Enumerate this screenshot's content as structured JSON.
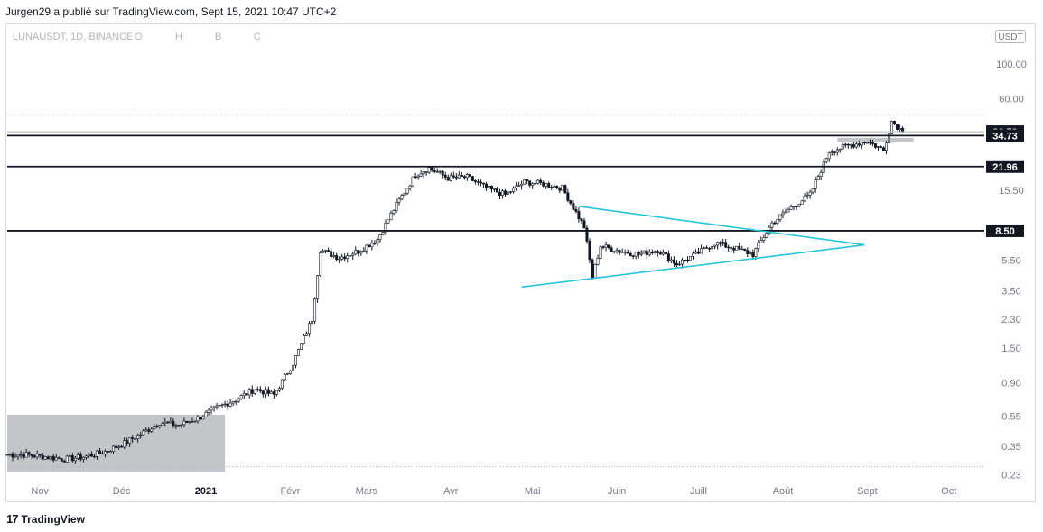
{
  "header": {
    "published": "Jurgen29 a  publié sur TradingView.com, Sept 15, 2021 10:47 UTC+2"
  },
  "legend": {
    "symbol": "LUNAUSDT, 1D, BINANCE",
    "o": "O",
    "h": "H",
    "b": "B",
    "c": "C"
  },
  "currency_button": "USDT",
  "footer": {
    "logo_text": "TradingView",
    "logo_icon": "tradingview-logo-icon"
  },
  "colors": {
    "candle": "#131722",
    "level_line": "#131722",
    "triangle": "#26c6da",
    "zone": "#c4c5c9",
    "axis_text": "#787b86",
    "price_tag_bg": "#131722"
  },
  "chart_data": {
    "type": "candlestick",
    "scale": "log",
    "x_tick_labels": [
      "Nov",
      "Déc",
      "2021",
      "Févr",
      "Mars",
      "Avr",
      "Mai",
      "Juin",
      "Juill",
      "Août",
      "Sept",
      "Oct"
    ],
    "y_tick_labels": [
      "100.00",
      "60.00",
      "15.50",
      "8.50",
      "5.50",
      "3.50",
      "2.30",
      "1.50",
      "0.90",
      "0.55",
      "0.35",
      "0.23"
    ],
    "ylim": [
      0.22,
      180
    ],
    "horizontal_levels": [
      {
        "label": "36.79",
        "value": 36.79
      },
      {
        "label": "34.73",
        "value": 34.73
      },
      {
        "label": "21.96",
        "value": 21.96
      },
      {
        "label": "8.50",
        "value": 8.5
      }
    ],
    "close_series": [
      [
        "2020-10-20",
        0.31
      ],
      [
        "2020-10-27",
        0.31
      ],
      [
        "2020-11-03",
        0.3
      ],
      [
        "2020-11-10",
        0.29
      ],
      [
        "2020-11-17",
        0.3
      ],
      [
        "2020-11-24",
        0.32
      ],
      [
        "2020-12-01",
        0.36
      ],
      [
        "2020-12-08",
        0.42
      ],
      [
        "2020-12-15",
        0.5
      ],
      [
        "2020-12-22",
        0.48
      ],
      [
        "2020-12-29",
        0.53
      ],
      [
        "2021-01-05",
        0.62
      ],
      [
        "2021-01-12",
        0.7
      ],
      [
        "2021-01-19",
        0.82
      ],
      [
        "2021-01-26",
        0.75
      ],
      [
        "2021-02-02",
        1.2
      ],
      [
        "2021-02-09",
        2.3
      ],
      [
        "2021-02-12",
        6.4
      ],
      [
        "2021-02-19",
        5.7
      ],
      [
        "2021-02-26",
        6.3
      ],
      [
        "2021-03-05",
        7.5
      ],
      [
        "2021-03-12",
        12.5
      ],
      [
        "2021-03-19",
        19.5
      ],
      [
        "2021-03-24",
        21.5
      ],
      [
        "2021-03-31",
        18.5
      ],
      [
        "2021-04-07",
        18.8
      ],
      [
        "2021-04-14",
        16.0
      ],
      [
        "2021-04-21",
        14.5
      ],
      [
        "2021-04-28",
        17.5
      ],
      [
        "2021-05-05",
        17.0
      ],
      [
        "2021-05-12",
        16.0
      ],
      [
        "2021-05-20",
        9.0
      ],
      [
        "2021-05-23",
        4.3
      ],
      [
        "2021-05-26",
        6.8
      ],
      [
        "2021-06-02",
        6.3
      ],
      [
        "2021-06-09",
        6.0
      ],
      [
        "2021-06-16",
        6.4
      ],
      [
        "2021-06-23",
        5.2
      ],
      [
        "2021-06-30",
        6.0
      ],
      [
        "2021-07-07",
        7.1
      ],
      [
        "2021-07-14",
        6.6
      ],
      [
        "2021-07-21",
        6.0
      ],
      [
        "2021-07-28",
        9.5
      ],
      [
        "2021-08-04",
        12.0
      ],
      [
        "2021-08-11",
        14.5
      ],
      [
        "2021-08-18",
        27.5
      ],
      [
        "2021-08-25",
        30.0
      ],
      [
        "2021-09-01",
        32.0
      ],
      [
        "2021-09-07",
        28.0
      ],
      [
        "2021-09-10",
        43.0
      ],
      [
        "2021-09-14",
        36.79
      ]
    ],
    "triangle": {
      "upper": [
        [
          "2021-05-18",
          12.2
        ],
        [
          "2021-08-31",
          6.9
        ]
      ],
      "lower": [
        [
          "2021-04-27",
          3.7
        ],
        [
          "2021-08-31",
          6.9
        ]
      ]
    },
    "zones": [
      {
        "x": [
          "2020-10-20",
          "2021-01-08"
        ],
        "y": [
          0.24,
          0.56
        ]
      },
      {
        "x": [
          "2021-08-21",
          "2021-09-18"
        ],
        "y": [
          31.8,
          33.6
        ]
      }
    ],
    "grid": false,
    "legend": "top-left"
  }
}
